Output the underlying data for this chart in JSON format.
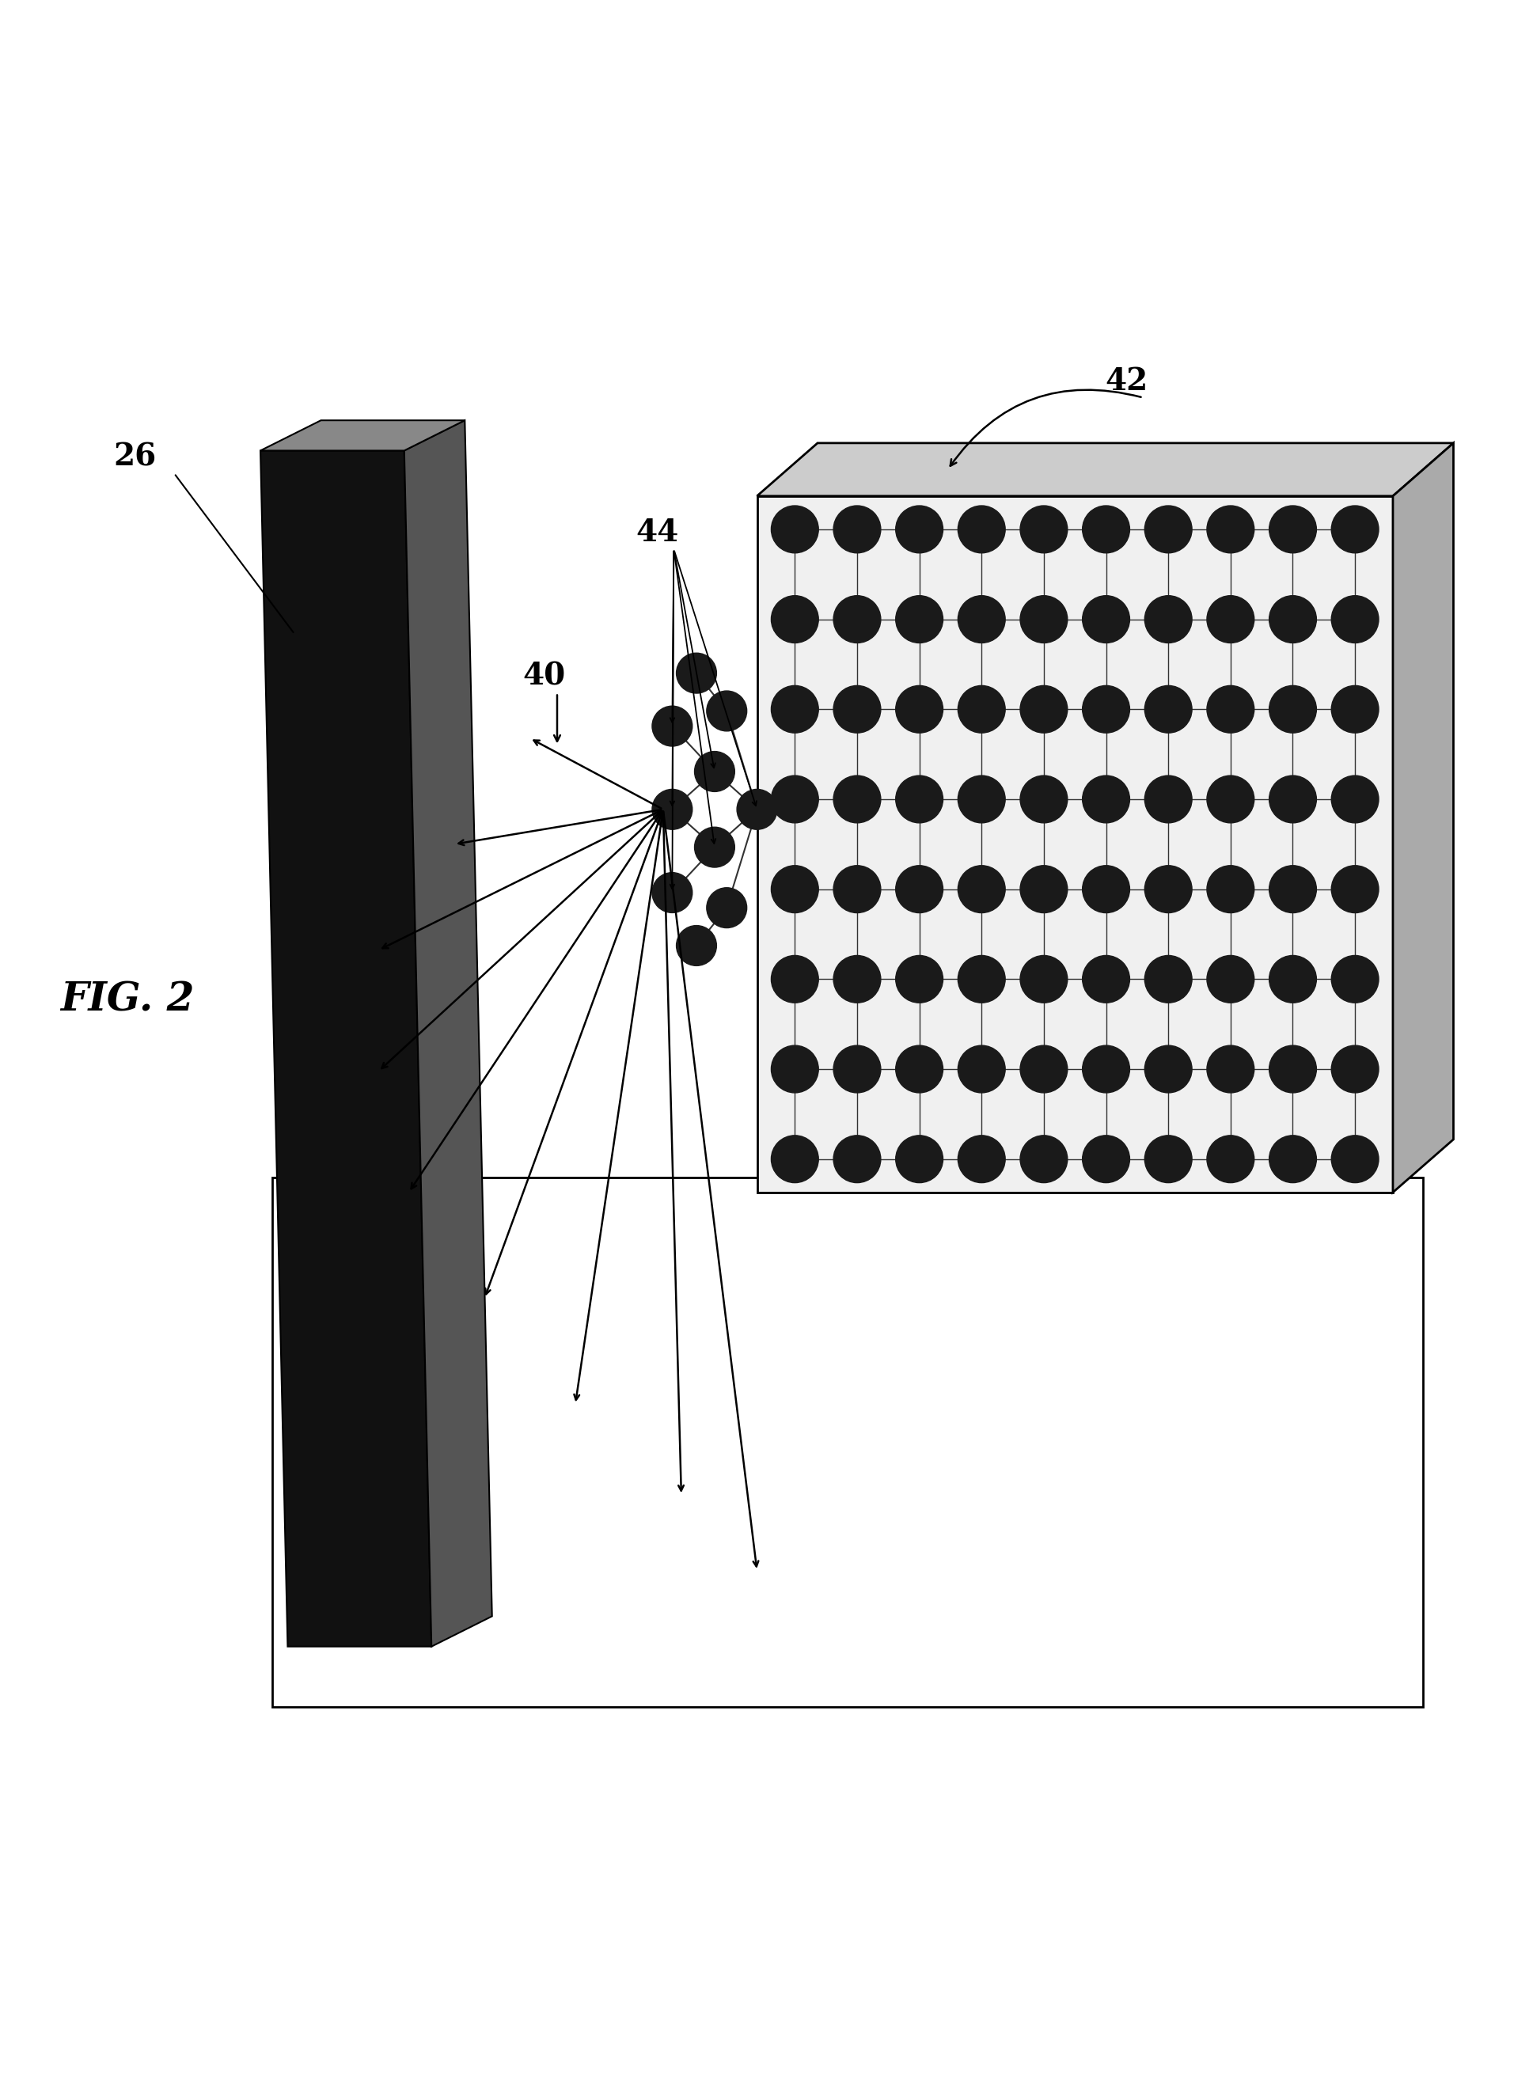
{
  "bg_color": "#ffffff",
  "atom_color": "#1a1a1a",
  "fig_width": 19.13,
  "fig_height": 26.31,
  "label_26": "26",
  "label_40": "40",
  "label_42": "42",
  "label_44": "44",
  "fig_label": "FIG. 2",
  "detector_front_color": "#111111",
  "detector_top_color": "#888888",
  "detector_right_color": "#555555",
  "lattice_bg_color": "#e8e8e8",
  "lattice_top_color": "#cccccc",
  "lattice_right_color": "#aaaaaa",
  "base_color": "#ffffff",
  "bond_color": "#333333"
}
